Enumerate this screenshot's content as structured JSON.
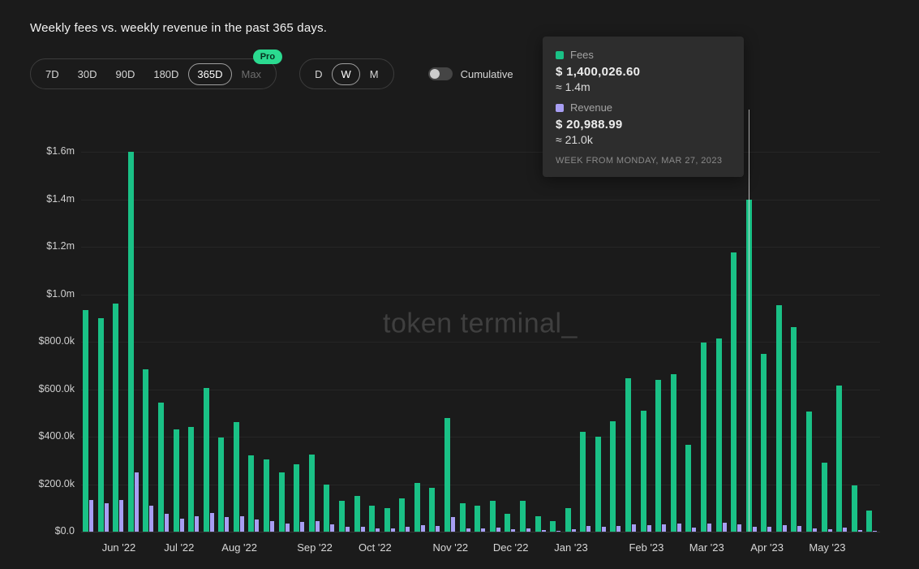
{
  "page": {
    "title": "Weekly fees vs. weekly revenue in the past 365 days."
  },
  "controls": {
    "range_options": [
      "7D",
      "30D",
      "90D",
      "180D",
      "365D",
      "Max"
    ],
    "selected_range": "365D",
    "pro_badge": "Pro",
    "granularity_options": [
      "D",
      "W",
      "M"
    ],
    "selected_granularity": "W",
    "cumulative_label": "Cumulative",
    "cumulative_on": false
  },
  "tooltip": {
    "fees_label": "Fees",
    "fees_value": "$ 1,400,026.60",
    "fees_approx": "≈ 1.4m",
    "revenue_label": "Revenue",
    "revenue_value": "$ 20,988.99",
    "revenue_approx": "≈ 21.0k",
    "caption": "WEEK FROM MONDAY, MAR 27, 2023"
  },
  "watermark": "token terminal_",
  "colors": {
    "background": "#1b1b1b",
    "fees": "#1ac186",
    "revenue": "#a89ef3",
    "pro_badge": "#2bda90"
  },
  "chart_data": {
    "type": "bar",
    "title": "Weekly fees vs. weekly revenue in the past 365 days.",
    "x": [
      "2022-05-23",
      "2022-05-30",
      "2022-06-06",
      "2022-06-13",
      "2022-06-20",
      "2022-06-27",
      "2022-07-04",
      "2022-07-11",
      "2022-07-18",
      "2022-07-25",
      "2022-08-01",
      "2022-08-08",
      "2022-08-15",
      "2022-08-22",
      "2022-08-29",
      "2022-09-05",
      "2022-09-12",
      "2022-09-19",
      "2022-09-26",
      "2022-10-03",
      "2022-10-10",
      "2022-10-17",
      "2022-10-24",
      "2022-10-31",
      "2022-11-07",
      "2022-11-14",
      "2022-11-21",
      "2022-11-28",
      "2022-12-05",
      "2022-12-12",
      "2022-12-19",
      "2022-12-26",
      "2023-01-02",
      "2023-01-09",
      "2023-01-16",
      "2023-01-23",
      "2023-01-30",
      "2023-02-06",
      "2023-02-13",
      "2023-02-20",
      "2023-02-27",
      "2023-03-06",
      "2023-03-13",
      "2023-03-20",
      "2023-03-27",
      "2023-04-03",
      "2023-04-10",
      "2023-04-17",
      "2023-04-24",
      "2023-05-01",
      "2023-05-08",
      "2023-05-15",
      "2023-05-22"
    ],
    "series": [
      {
        "name": "Fees",
        "color": "#1ac186",
        "values": [
          935000,
          900000,
          960000,
          1600000,
          685000,
          545000,
          430000,
          440000,
          605000,
          395000,
          460000,
          320000,
          305000,
          250000,
          285000,
          325000,
          200000,
          130000,
          150000,
          110000,
          100000,
          140000,
          205000,
          185000,
          480000,
          120000,
          110000,
          130000,
          75000,
          130000,
          65000,
          45000,
          100000,
          420000,
          400000,
          465000,
          645000,
          510000,
          640000,
          665000,
          365000,
          795000,
          815000,
          1175000,
          1400026.6,
          750000,
          955000,
          860000,
          505000,
          290000,
          615000,
          195000,
          90000
        ]
      },
      {
        "name": "Revenue",
        "color": "#a89ef3",
        "values": [
          135000,
          120000,
          135000,
          250000,
          110000,
          75000,
          55000,
          65000,
          80000,
          60000,
          65000,
          50000,
          45000,
          35000,
          40000,
          45000,
          30000,
          20000,
          22000,
          15000,
          14000,
          20000,
          28000,
          25000,
          60000,
          15000,
          13000,
          16000,
          9000,
          15000,
          8000,
          5000,
          10000,
          25000,
          22000,
          25000,
          32000,
          26000,
          30000,
          33000,
          18000,
          35000,
          36000,
          30000,
          20988.99,
          22000,
          28000,
          25000,
          15000,
          9000,
          18000,
          6000,
          3000
        ]
      }
    ],
    "ylim": [
      0,
      1600000
    ],
    "ytick_labels": [
      "$0.0",
      "$200.0k",
      "$400.0k",
      "$600.0k",
      "$800.0k",
      "$1.0m",
      "$1.2m",
      "$1.4m",
      "$1.6m"
    ],
    "xtick_labels": [
      "Jun '22",
      "Jul '22",
      "Aug '22",
      "Sep '22",
      "Oct '22",
      "Nov '22",
      "Dec '22",
      "Jan '23",
      "Feb '23",
      "Mar '23",
      "Apr '23",
      "May '23"
    ],
    "month_tick_indices": [
      2,
      6,
      10,
      15,
      19,
      24,
      28,
      32,
      37,
      41,
      45,
      49
    ],
    "hover_index": 44,
    "grid": true,
    "legend_position": "tooltip"
  }
}
